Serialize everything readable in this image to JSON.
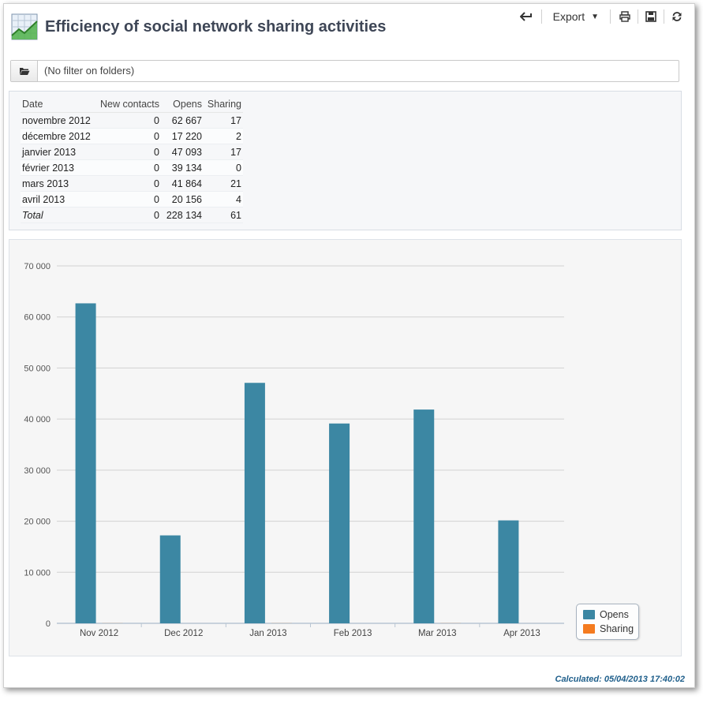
{
  "header": {
    "title": "Efficiency of social network sharing activities",
    "icon": "report-chart-icon"
  },
  "toolbar": {
    "back_icon": "back-arrow-icon",
    "export_label": "Export",
    "print_icon": "print-icon",
    "save_icon": "save-icon",
    "refresh_icon": "refresh-icon"
  },
  "filter": {
    "folder_icon": "folder-open-icon",
    "text": "(No filter on folders)"
  },
  "table": {
    "headers": [
      "Date",
      "New contacts",
      "Opens",
      "Sharing"
    ],
    "rows": [
      [
        "novembre 2012",
        "0",
        "62 667",
        "17"
      ],
      [
        "décembre 2012",
        "0",
        "17 220",
        "2"
      ],
      [
        "janvier 2013",
        "0",
        "47 093",
        "17"
      ],
      [
        "février 2013",
        "0",
        "39 134",
        "0"
      ],
      [
        "mars 2013",
        "0",
        "41 864",
        "21"
      ],
      [
        "avril 2013",
        "0",
        "20 156",
        "4"
      ]
    ],
    "total": [
      "Total",
      "0",
      "228 134",
      "61"
    ]
  },
  "chart_data": {
    "type": "bar",
    "categories": [
      "Nov 2012",
      "Dec 2012",
      "Jan 2013",
      "Feb 2013",
      "Mar 2013",
      "Apr 2013"
    ],
    "series": [
      {
        "name": "Opens",
        "values": [
          62667,
          17220,
          47093,
          39134,
          41864,
          20156
        ],
        "color": "#3c87a3"
      },
      {
        "name": "Sharing",
        "values": [
          17,
          2,
          17,
          0,
          21,
          4
        ],
        "color": "#f47b20"
      }
    ],
    "y_ticks": [
      "0",
      "10 000",
      "20 000",
      "30 000",
      "40 000",
      "50 000",
      "60 000",
      "70 000"
    ],
    "ylim": [
      0,
      70000
    ],
    "grid": true,
    "legend_position": "bottom-right"
  },
  "footer": {
    "calculated": "Calculated: 05/04/2013 17:40:02"
  }
}
